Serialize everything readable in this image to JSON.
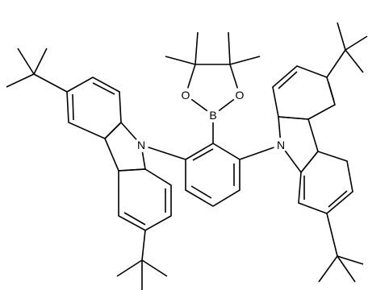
{
  "atoms": {
    "n_left": "N",
    "n_right": "N",
    "boron": "B",
    "o_left": "O",
    "o_right": "O"
  }
}
